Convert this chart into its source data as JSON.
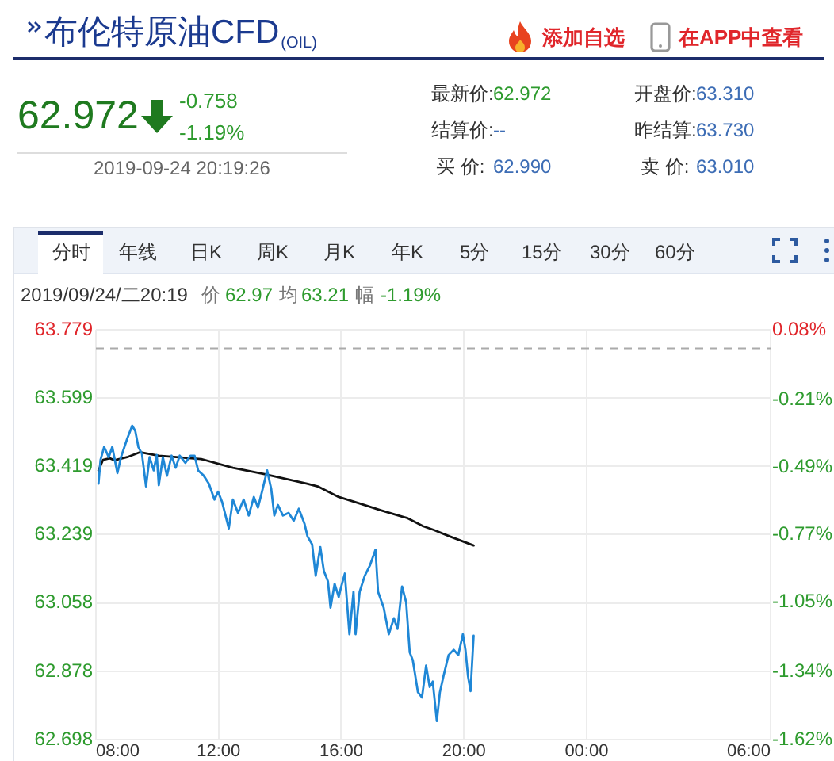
{
  "chart_data": {
    "type": "line",
    "title": "布伦特原油CFD$_{(OIL)}$",
    "annotations": [
      "添加自选",
      "在APP中查看",
      "62.972",
      "-0.758",
      "-1.19%",
      "2019-09-24 20:19:26",
      "最新价:",
      "62.972",
      "结算价:",
      "--",
      "买 价:",
      "62.990",
      "开盘价:",
      "63.310",
      "昨结算:",
      "63.730",
      "卖 价:",
      "63.010",
      "分时",
      "年线",
      "日K",
      "周K",
      "月K",
      "年K",
      "5分",
      "15分",
      "30分",
      "60分",
      "2019/09/24/二20:19",
      "价",
      "62.97",
      "均",
      "63.21",
      "幅",
      "-1.19%"
    ],
    "series": [
      {
        "color": "#1f87d6",
        "x": [
          "2019-09-24T08:05",
          "2019-09-24T08:09",
          "2019-09-24T08:16",
          "2019-09-24T08:25",
          "2019-09-24T08:32",
          "2019-09-24T08:42",
          "2019-09-24T08:49",
          "2019-09-24T09:01",
          "2019-09-24T09:11",
          "2019-09-24T09:17",
          "2019-09-24T09:23",
          "2019-09-24T09:30",
          "2019-09-24T09:38",
          "2019-09-24T09:45",
          "2019-09-24T09:53",
          "2019-09-24T09:59",
          "2019-09-24T10:03",
          "2019-09-24T10:11",
          "2019-09-24T10:19",
          "2019-09-24T10:28",
          "2019-09-24T10:36",
          "2019-09-24T10:44",
          "2019-09-24T10:55",
          "2019-09-24T11:05",
          "2019-09-24T11:13",
          "2019-09-24T11:20",
          "2019-09-24T11:31",
          "2019-09-24T11:41",
          "2019-09-24T11:52",
          "2019-09-24T11:59",
          "2019-09-24T12:07",
          "2019-09-24T12:20",
          "2019-09-24T12:28",
          "2019-09-24T12:38",
          "2019-09-24T12:49",
          "2019-09-24T12:59",
          "2019-09-24T13:09",
          "2019-09-24T13:17",
          "2019-09-24T13:25",
          "2019-09-24T13:35",
          "2019-09-24T13:43",
          "2019-09-24T13:49",
          "2019-09-24T13:56",
          "2019-09-24T14:06",
          "2019-09-24T14:17",
          "2019-09-24T14:27",
          "2019-09-24T14:37",
          "2019-09-24T14:48",
          "2019-09-24T14:54",
          "2019-09-24T15:03",
          "2019-09-24T15:10",
          "2019-09-24T15:19",
          "2019-09-24T15:26",
          "2019-09-24T15:34",
          "2019-09-24T15:39",
          "2019-09-24T15:47",
          "2019-09-24T15:55",
          "2019-09-24T16:00",
          "2019-09-24T16:07",
          "2019-09-24T16:16",
          "2019-09-24T16:24",
          "2019-09-24T16:28",
          "2019-09-24T16:36",
          "2019-09-24T16:46",
          "2019-09-24T16:56",
          "2019-09-24T17:07",
          "2019-09-24T17:12",
          "2019-09-24T17:23",
          "2019-09-24T17:33",
          "2019-09-24T17:43",
          "2019-09-24T17:50",
          "2019-09-24T17:59",
          "2019-09-24T18:07",
          "2019-09-24T18:14",
          "2019-09-24T18:20",
          "2019-09-24T18:30",
          "2019-09-24T18:38",
          "2019-09-24T18:46",
          "2019-09-24T18:53",
          "2019-09-24T18:59",
          "2019-09-24T19:07",
          "2019-09-24T19:13",
          "2019-09-24T19:20",
          "2019-09-24T19:30",
          "2019-09-24T19:40",
          "2019-09-24T19:49",
          "2019-09-24T19:58",
          "2019-09-24T20:03",
          "2019-09-24T20:08",
          "2019-09-24T20:13",
          "2019-09-24T20:19"
        ],
        "values": [
          63.373,
          63.436,
          63.47,
          63.443,
          63.47,
          63.401,
          63.443,
          63.491,
          63.526,
          63.512,
          63.47,
          63.452,
          63.366,
          63.443,
          63.408,
          63.449,
          63.369,
          63.443,
          63.394,
          63.447,
          63.415,
          63.447,
          63.428,
          63.447,
          63.447,
          63.408,
          63.394,
          63.373,
          63.331,
          63.352,
          63.324,
          63.255,
          63.331,
          63.296,
          63.331,
          63.289,
          63.338,
          63.31,
          63.352,
          63.408,
          63.359,
          63.289,
          63.317,
          63.289,
          63.296,
          63.275,
          63.307,
          63.268,
          63.234,
          63.213,
          63.13,
          63.206,
          63.143,
          63.115,
          63.046,
          63.109,
          63.074,
          63.102,
          63.136,
          62.976,
          63.088,
          62.976,
          63.088,
          63.13,
          63.157,
          63.199,
          63.088,
          63.046,
          62.976,
          63.018,
          62.99,
          63.102,
          63.06,
          62.928,
          62.907,
          62.823,
          62.809,
          62.893,
          62.837,
          62.851,
          62.747,
          62.823,
          62.865,
          62.921,
          62.935,
          62.921,
          62.976,
          62.935,
          62.865,
          62.826,
          62.972
        ]
      },
      {
        "color": "#111111",
        "x": [
          "2019-09-24T08:05",
          "2019-09-24T08:14",
          "2019-09-24T08:27",
          "2019-09-24T08:36",
          "2019-09-24T09:01",
          "2019-09-24T09:26",
          "2019-09-24T10:03",
          "2019-09-24T11:26",
          "2019-09-24T12:28",
          "2019-09-24T13:30",
          "2019-09-24T14:53",
          "2019-09-24T15:14",
          "2019-09-24T15:55",
          "2019-09-24T16:36",
          "2019-09-24T17:17",
          "2019-09-24T18:10",
          "2019-09-24T18:40",
          "2019-09-24T19:01",
          "2019-09-24T19:32",
          "2019-09-24T20:19"
        ],
        "values": [
          63.408,
          63.436,
          63.44,
          63.435,
          63.443,
          63.456,
          63.447,
          63.438,
          63.415,
          63.398,
          63.373,
          63.366,
          63.338,
          63.321,
          63.303,
          63.282,
          63.261,
          63.251,
          63.234,
          63.21
        ]
      }
    ],
    "xlim": [
      "2019-09-24T08:00",
      "2019-09-25T06:00"
    ],
    "xticks": [
      {
        "value": "2019-09-24T08:00",
        "label": "08:00"
      },
      {
        "value": "2019-09-24T12:00",
        "label": "12:00"
      },
      {
        "value": "2019-09-24T16:00",
        "label": "16:00"
      },
      {
        "value": "2019-09-24T20:00",
        "label": "20:00"
      },
      {
        "value": "2019-09-25T00:00",
        "label": "00:00"
      },
      {
        "value": "2019-09-25T06:00",
        "label": "06:00"
      }
    ],
    "ylim": [
      62.698,
      63.779
    ],
    "yticks": [
      62.698,
      62.878,
      63.058,
      63.239,
      63.419,
      63.599,
      63.779
    ],
    "y2lim": [
      -1.62,
      0.08
    ],
    "y2ticks": [
      {
        "value": -1.62,
        "label": "-1.62%"
      },
      {
        "value": -1.34,
        "label": "-1.34%"
      },
      {
        "value": -1.05,
        "label": "-1.05%"
      },
      {
        "value": -0.77,
        "label": "-0.77%"
      },
      {
        "value": -0.49,
        "label": "-0.49%"
      },
      {
        "value": -0.21,
        "label": "-0.21%"
      },
      {
        "value": 0.08,
        "label": "0.08%"
      }
    ],
    "ref_lines": [
      {
        "axis": "y",
        "value": 63.73,
        "color": "#aaaaaa",
        "line_style": "dashed"
      }
    ],
    "grid": true,
    "legend": false,
    "marker": "none",
    "line_style": "solid"
  }
}
